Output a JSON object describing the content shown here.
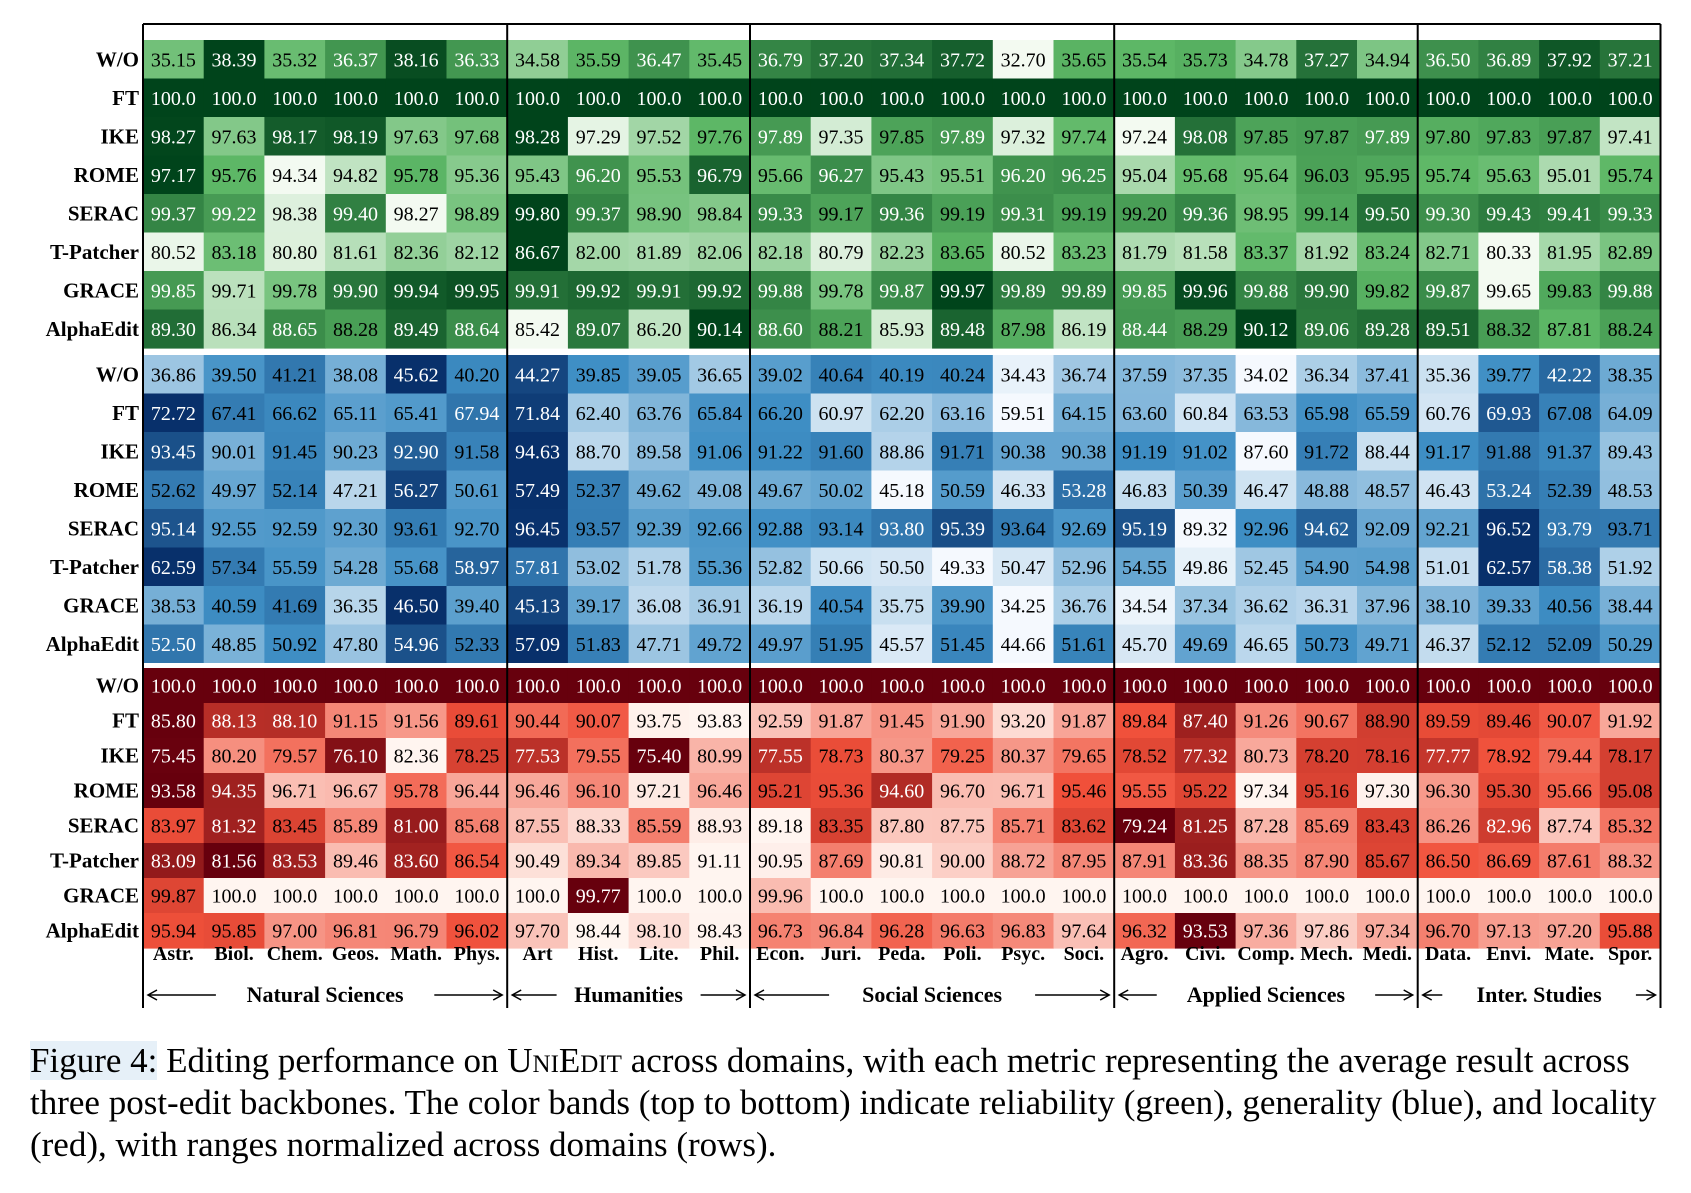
{
  "chart_data": {
    "type": "heatmap",
    "columns": [
      "Astr.",
      "Biol.",
      "Chem.",
      "Geos.",
      "Math.",
      "Phys.",
      "Art",
      "Hist.",
      "Lite.",
      "Phil.",
      "Econ.",
      "Juri.",
      "Peda.",
      "Poli.",
      "Psyc.",
      "Soci.",
      "Agro.",
      "Civi.",
      "Comp.",
      "Mech.",
      "Medi.",
      "Data.",
      "Envi.",
      "Mate.",
      "Spor."
    ],
    "groups": [
      {
        "name": "Natural Sciences",
        "count": 6
      },
      {
        "name": "Humanities",
        "count": 4
      },
      {
        "name": "Social Sciences",
        "count": 6
      },
      {
        "name": "Applied Sciences",
        "count": 5
      },
      {
        "name": "Inter. Studies",
        "count": 4
      }
    ],
    "bands": [
      {
        "metric": "reliability",
        "color": "green",
        "rows": [
          {
            "method": "W/O",
            "values": [
              "35.15",
              "38.39",
              "35.32",
              "36.37",
              "38.16",
              "36.33",
              "34.58",
              "35.59",
              "36.47",
              "35.45",
              "36.79",
              "37.20",
              "37.34",
              "37.72",
              "32.70",
              "35.65",
              "35.54",
              "35.73",
              "34.78",
              "37.27",
              "34.94",
              "36.50",
              "36.89",
              "37.92",
              "37.21"
            ]
          },
          {
            "method": "FT",
            "values": [
              "100.0",
              "100.0",
              "100.0",
              "100.0",
              "100.0",
              "100.0",
              "100.0",
              "100.0",
              "100.0",
              "100.0",
              "100.0",
              "100.0",
              "100.0",
              "100.0",
              "100.0",
              "100.0",
              "100.0",
              "100.0",
              "100.0",
              "100.0",
              "100.0",
              "100.0",
              "100.0",
              "100.0",
              "100.0"
            ]
          },
          {
            "method": "IKE",
            "values": [
              "98.27",
              "97.63",
              "98.17",
              "98.19",
              "97.63",
              "97.68",
              "98.28",
              "97.29",
              "97.52",
              "97.76",
              "97.89",
              "97.35",
              "97.85",
              "97.89",
              "97.32",
              "97.74",
              "97.24",
              "98.08",
              "97.85",
              "97.87",
              "97.89",
              "97.80",
              "97.83",
              "97.87",
              "97.41"
            ]
          },
          {
            "method": "ROME",
            "values": [
              "97.17",
              "95.76",
              "94.34",
              "94.82",
              "95.78",
              "95.36",
              "95.43",
              "96.20",
              "95.53",
              "96.79",
              "95.66",
              "96.27",
              "95.43",
              "95.51",
              "96.20",
              "96.25",
              "95.04",
              "95.68",
              "95.64",
              "96.03",
              "95.95",
              "95.74",
              "95.63",
              "95.01",
              "95.74"
            ]
          },
          {
            "method": "SERAC",
            "values": [
              "99.37",
              "99.22",
              "98.38",
              "99.40",
              "98.27",
              "98.89",
              "99.80",
              "99.37",
              "98.90",
              "98.84",
              "99.33",
              "99.17",
              "99.36",
              "99.19",
              "99.31",
              "99.19",
              "99.20",
              "99.36",
              "98.95",
              "99.14",
              "99.50",
              "99.30",
              "99.43",
              "99.41",
              "99.33"
            ]
          },
          {
            "method": "T-Patcher",
            "values": [
              "80.52",
              "83.18",
              "80.80",
              "81.61",
              "82.36",
              "82.12",
              "86.67",
              "82.00",
              "81.89",
              "82.06",
              "82.18",
              "80.79",
              "82.23",
              "83.65",
              "80.52",
              "83.23",
              "81.79",
              "81.58",
              "83.37",
              "81.92",
              "83.24",
              "82.71",
              "80.33",
              "81.95",
              "82.89"
            ]
          },
          {
            "method": "GRACE",
            "values": [
              "99.85",
              "99.71",
              "99.78",
              "99.90",
              "99.94",
              "99.95",
              "99.91",
              "99.92",
              "99.91",
              "99.92",
              "99.88",
              "99.78",
              "99.87",
              "99.97",
              "99.89",
              "99.89",
              "99.85",
              "99.96",
              "99.88",
              "99.90",
              "99.82",
              "99.87",
              "99.65",
              "99.83",
              "99.88"
            ]
          },
          {
            "method": "AlphaEdit",
            "values": [
              "89.30",
              "86.34",
              "88.65",
              "88.28",
              "89.49",
              "88.64",
              "85.42",
              "89.07",
              "86.20",
              "90.14",
              "88.60",
              "88.21",
              "85.93",
              "89.48",
              "87.98",
              "86.19",
              "88.44",
              "88.29",
              "90.12",
              "89.06",
              "89.28",
              "89.51",
              "88.32",
              "87.81",
              "88.24"
            ]
          }
        ]
      },
      {
        "metric": "generality",
        "color": "blue",
        "rows": [
          {
            "method": "W/O",
            "values": [
              "36.86",
              "39.50",
              "41.21",
              "38.08",
              "45.62",
              "40.20",
              "44.27",
              "39.85",
              "39.05",
              "36.65",
              "39.02",
              "40.64",
              "40.19",
              "40.24",
              "34.43",
              "36.74",
              "37.59",
              "37.35",
              "34.02",
              "36.34",
              "37.41",
              "35.36",
              "39.77",
              "42.22",
              "38.35"
            ]
          },
          {
            "method": "FT",
            "values": [
              "72.72",
              "67.41",
              "66.62",
              "65.11",
              "65.41",
              "67.94",
              "71.84",
              "62.40",
              "63.76",
              "65.84",
              "66.20",
              "60.97",
              "62.20",
              "63.16",
              "59.51",
              "64.15",
              "63.60",
              "60.84",
              "63.53",
              "65.98",
              "65.59",
              "60.76",
              "69.93",
              "67.08",
              "64.09"
            ]
          },
          {
            "method": "IKE",
            "values": [
              "93.45",
              "90.01",
              "91.45",
              "90.23",
              "92.90",
              "91.58",
              "94.63",
              "88.70",
              "89.58",
              "91.06",
              "91.22",
              "91.60",
              "88.86",
              "91.71",
              "90.38",
              "90.38",
              "91.19",
              "91.02",
              "87.60",
              "91.72",
              "88.44",
              "91.17",
              "91.88",
              "91.37",
              "89.43"
            ]
          },
          {
            "method": "ROME",
            "values": [
              "52.62",
              "49.97",
              "52.14",
              "47.21",
              "56.27",
              "50.61",
              "57.49",
              "52.37",
              "49.62",
              "49.08",
              "49.67",
              "50.02",
              "45.18",
              "50.59",
              "46.33",
              "53.28",
              "46.83",
              "50.39",
              "46.47",
              "48.88",
              "48.57",
              "46.43",
              "53.24",
              "52.39",
              "48.53"
            ]
          },
          {
            "method": "SERAC",
            "values": [
              "95.14",
              "92.55",
              "92.59",
              "92.30",
              "93.61",
              "92.70",
              "96.45",
              "93.57",
              "92.39",
              "92.66",
              "92.88",
              "93.14",
              "93.80",
              "95.39",
              "93.64",
              "92.69",
              "95.19",
              "89.32",
              "92.96",
              "94.62",
              "92.09",
              "92.21",
              "96.52",
              "93.79",
              "93.71"
            ]
          },
          {
            "method": "T-Patcher",
            "values": [
              "62.59",
              "57.34",
              "55.59",
              "54.28",
              "55.68",
              "58.97",
              "57.81",
              "53.02",
              "51.78",
              "55.36",
              "52.82",
              "50.66",
              "50.50",
              "49.33",
              "50.47",
              "52.96",
              "54.55",
              "49.86",
              "52.45",
              "54.90",
              "54.98",
              "51.01",
              "62.57",
              "58.38",
              "51.92"
            ]
          },
          {
            "method": "GRACE",
            "values": [
              "38.53",
              "40.59",
              "41.69",
              "36.35",
              "46.50",
              "39.40",
              "45.13",
              "39.17",
              "36.08",
              "36.91",
              "36.19",
              "40.54",
              "35.75",
              "39.90",
              "34.25",
              "36.76",
              "34.54",
              "37.34",
              "36.62",
              "36.31",
              "37.96",
              "38.10",
              "39.33",
              "40.56",
              "38.44"
            ]
          },
          {
            "method": "AlphaEdit",
            "values": [
              "52.50",
              "48.85",
              "50.92",
              "47.80",
              "54.96",
              "52.33",
              "57.09",
              "51.83",
              "47.71",
              "49.72",
              "49.97",
              "51.95",
              "45.57",
              "51.45",
              "44.66",
              "51.61",
              "45.70",
              "49.69",
              "46.65",
              "50.73",
              "49.71",
              "46.37",
              "52.12",
              "52.09",
              "50.29"
            ]
          }
        ]
      },
      {
        "metric": "locality",
        "color": "red",
        "rows": [
          {
            "method": "W/O",
            "values": [
              "100.0",
              "100.0",
              "100.0",
              "100.0",
              "100.0",
              "100.0",
              "100.0",
              "100.0",
              "100.0",
              "100.0",
              "100.0",
              "100.0",
              "100.0",
              "100.0",
              "100.0",
              "100.0",
              "100.0",
              "100.0",
              "100.0",
              "100.0",
              "100.0",
              "100.0",
              "100.0",
              "100.0",
              "100.0"
            ]
          },
          {
            "method": "FT",
            "values": [
              "85.80",
              "88.13",
              "88.10",
              "91.15",
              "91.56",
              "89.61",
              "90.44",
              "90.07",
              "93.75",
              "93.83",
              "92.59",
              "91.87",
              "91.45",
              "91.90",
              "93.20",
              "91.87",
              "89.84",
              "87.40",
              "91.26",
              "90.67",
              "88.90",
              "89.59",
              "89.46",
              "90.07",
              "91.92"
            ]
          },
          {
            "method": "IKE",
            "values": [
              "75.45",
              "80.20",
              "79.57",
              "76.10",
              "82.36",
              "78.25",
              "77.53",
              "79.55",
              "75.40",
              "80.99",
              "77.55",
              "78.73",
              "80.37",
              "79.25",
              "80.37",
              "79.65",
              "78.52",
              "77.32",
              "80.73",
              "78.20",
              "78.16",
              "77.77",
              "78.92",
              "79.44",
              "78.17"
            ]
          },
          {
            "method": "ROME",
            "values": [
              "93.58",
              "94.35",
              "96.71",
              "96.67",
              "95.78",
              "96.44",
              "96.46",
              "96.10",
              "97.21",
              "96.46",
              "95.21",
              "95.36",
              "94.60",
              "96.70",
              "96.71",
              "95.46",
              "95.55",
              "95.22",
              "97.34",
              "95.16",
              "97.30",
              "96.30",
              "95.30",
              "95.66",
              "95.08"
            ]
          },
          {
            "method": "SERAC",
            "values": [
              "83.97",
              "81.32",
              "83.45",
              "85.89",
              "81.00",
              "85.68",
              "87.55",
              "88.33",
              "85.59",
              "88.93",
              "89.18",
              "83.35",
              "87.80",
              "87.75",
              "85.71",
              "83.62",
              "79.24",
              "81.25",
              "87.28",
              "85.69",
              "83.43",
              "86.26",
              "82.96",
              "87.74",
              "85.32"
            ]
          },
          {
            "method": "T-Patcher",
            "values": [
              "83.09",
              "81.56",
              "83.53",
              "89.46",
              "83.60",
              "86.54",
              "90.49",
              "89.34",
              "89.85",
              "91.11",
              "90.95",
              "87.69",
              "90.81",
              "90.00",
              "88.72",
              "87.95",
              "87.91",
              "83.36",
              "88.35",
              "87.90",
              "85.67",
              "86.50",
              "86.69",
              "87.61",
              "88.32"
            ]
          },
          {
            "method": "GRACE",
            "values": [
              "99.87",
              "100.0",
              "100.0",
              "100.0",
              "100.0",
              "100.0",
              "100.0",
              "99.77",
              "100.0",
              "100.0",
              "99.96",
              "100.0",
              "100.0",
              "100.0",
              "100.0",
              "100.0",
              "100.0",
              "100.0",
              "100.0",
              "100.0",
              "100.0",
              "100.0",
              "100.0",
              "100.0",
              "100.0"
            ]
          },
          {
            "method": "AlphaEdit",
            "values": [
              "95.94",
              "95.85",
              "97.00",
              "96.81",
              "96.79",
              "96.02",
              "97.70",
              "98.44",
              "98.10",
              "98.43",
              "96.73",
              "96.84",
              "96.28",
              "96.63",
              "96.83",
              "97.64",
              "96.32",
              "93.53",
              "97.36",
              "97.86",
              "97.34",
              "96.70",
              "97.13",
              "97.20",
              "95.88"
            ]
          }
        ]
      }
    ]
  },
  "colors": {
    "green_light": "#f3faf1",
    "green_mid": "#5db766",
    "green_dark": "#00441b",
    "blue_light": "#f5f9fe",
    "blue_mid": "#3f8fc5",
    "blue_dark": "#08306b",
    "red_light": "#fff5f0",
    "red_mid": "#f0503a",
    "red_dark": "#67000d"
  },
  "caption": {
    "label": "Figure 4:",
    "text_before": " Editing performance on ",
    "name": "UniEdit",
    "text_after": " across domains, with each metric representing the average result across three post-edit backbones. The color bands (top to bottom) indicate reliability (green), generality (blue), and locality (red), with ranges normalized across domains (rows)."
  }
}
